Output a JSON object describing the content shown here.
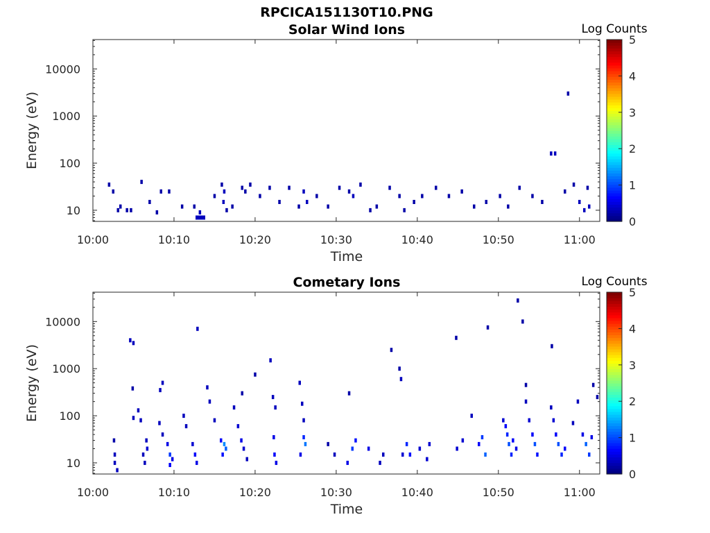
{
  "figure": {
    "title": "RPCICA151130T10.PNG"
  },
  "chart_data": [
    {
      "type": "heatmap",
      "title": "Solar Wind Ions",
      "xlabel": "Time",
      "ylabel": "Energy (eV)",
      "x_ticks": [
        "10:00",
        "10:10",
        "10:20",
        "10:30",
        "10:40",
        "10:50",
        "11:00"
      ],
      "x_range_minutes": [
        0,
        62.5
      ],
      "y_ticks": [
        "10",
        "100",
        "1000",
        "10000"
      ],
      "y_scale": "log",
      "y_range_eV": [
        5.8,
        42000
      ],
      "colorbar": {
        "label": "Log Counts",
        "ticks": [
          "0",
          "1",
          "2",
          "3",
          "4",
          "5"
        ],
        "range": [
          0,
          5
        ],
        "colormap": "jet"
      },
      "cells": [
        {
          "t": 2.0,
          "e": 35,
          "v": 0.2
        },
        {
          "t": 2.5,
          "e": 25,
          "v": 0.2
        },
        {
          "t": 3.1,
          "e": 10,
          "v": 0.2
        },
        {
          "t": 3.4,
          "e": 12,
          "v": 0.2
        },
        {
          "t": 4.2,
          "e": 10,
          "v": 0.2
        },
        {
          "t": 4.7,
          "e": 10,
          "v": 0.2
        },
        {
          "t": 6.0,
          "e": 40,
          "v": 0.2
        },
        {
          "t": 7.0,
          "e": 15,
          "v": 0.2
        },
        {
          "t": 7.9,
          "e": 9,
          "v": 0.2
        },
        {
          "t": 8.4,
          "e": 25,
          "v": 0.2
        },
        {
          "t": 9.4,
          "e": 25,
          "v": 0.2
        },
        {
          "t": 11.0,
          "e": 12,
          "v": 0.2
        },
        {
          "t": 12.5,
          "e": 12,
          "v": 0.2
        },
        {
          "t": 12.8,
          "e": 7,
          "v": 0.3
        },
        {
          "t": 13.1,
          "e": 7,
          "v": 0.3
        },
        {
          "t": 13.4,
          "e": 7,
          "v": 0.3
        },
        {
          "t": 13.7,
          "e": 7,
          "v": 0.3
        },
        {
          "t": 13.2,
          "e": 9,
          "v": 0.3
        },
        {
          "t": 15.0,
          "e": 20,
          "v": 0.2
        },
        {
          "t": 15.9,
          "e": 35,
          "v": 0.2
        },
        {
          "t": 16.2,
          "e": 25,
          "v": 0.3
        },
        {
          "t": 16.1,
          "e": 15,
          "v": 0.3
        },
        {
          "t": 16.5,
          "e": 10,
          "v": 0.2
        },
        {
          "t": 17.2,
          "e": 12,
          "v": 0.2
        },
        {
          "t": 18.4,
          "e": 30,
          "v": 0.2
        },
        {
          "t": 18.8,
          "e": 25,
          "v": 0.2
        },
        {
          "t": 19.4,
          "e": 35,
          "v": 0.2
        },
        {
          "t": 20.6,
          "e": 20,
          "v": 0.2
        },
        {
          "t": 21.8,
          "e": 30,
          "v": 0.2
        },
        {
          "t": 23.0,
          "e": 15,
          "v": 0.2
        },
        {
          "t": 24.2,
          "e": 30,
          "v": 0.2
        },
        {
          "t": 25.4,
          "e": 12,
          "v": 0.2
        },
        {
          "t": 26.0,
          "e": 25,
          "v": 0.3
        },
        {
          "t": 26.4,
          "e": 15,
          "v": 0.3
        },
        {
          "t": 27.6,
          "e": 20,
          "v": 0.2
        },
        {
          "t": 29.0,
          "e": 12,
          "v": 0.2
        },
        {
          "t": 30.4,
          "e": 30,
          "v": 0.2
        },
        {
          "t": 31.6,
          "e": 25,
          "v": 0.2
        },
        {
          "t": 32.1,
          "e": 20,
          "v": 0.3
        },
        {
          "t": 33.0,
          "e": 35,
          "v": 0.2
        },
        {
          "t": 34.2,
          "e": 10,
          "v": 0.2
        },
        {
          "t": 35.0,
          "e": 12,
          "v": 0.2
        },
        {
          "t": 36.6,
          "e": 30,
          "v": 0.2
        },
        {
          "t": 37.8,
          "e": 20,
          "v": 0.2
        },
        {
          "t": 38.4,
          "e": 10,
          "v": 0.2
        },
        {
          "t": 39.6,
          "e": 15,
          "v": 0.2
        },
        {
          "t": 40.6,
          "e": 20,
          "v": 0.2
        },
        {
          "t": 42.3,
          "e": 30,
          "v": 0.2
        },
        {
          "t": 43.9,
          "e": 20,
          "v": 0.2
        },
        {
          "t": 45.5,
          "e": 25,
          "v": 0.2
        },
        {
          "t": 47.0,
          "e": 12,
          "v": 0.2
        },
        {
          "t": 48.5,
          "e": 15,
          "v": 0.2
        },
        {
          "t": 50.2,
          "e": 20,
          "v": 0.2
        },
        {
          "t": 51.2,
          "e": 12,
          "v": 0.2
        },
        {
          "t": 52.6,
          "e": 30,
          "v": 0.2
        },
        {
          "t": 54.2,
          "e": 20,
          "v": 0.2
        },
        {
          "t": 55.4,
          "e": 15,
          "v": 0.2
        },
        {
          "t": 56.5,
          "e": 160,
          "v": 0.3
        },
        {
          "t": 57.0,
          "e": 160,
          "v": 0.3
        },
        {
          "t": 58.2,
          "e": 25,
          "v": 0.2
        },
        {
          "t": 59.3,
          "e": 35,
          "v": 0.2
        },
        {
          "t": 60.0,
          "e": 15,
          "v": 0.3
        },
        {
          "t": 60.6,
          "e": 10,
          "v": 0.3
        },
        {
          "t": 61.2,
          "e": 12,
          "v": 0.3
        },
        {
          "t": 61.0,
          "e": 30,
          "v": 0.2
        },
        {
          "t": 58.6,
          "e": 3000,
          "v": 0.2
        }
      ]
    },
    {
      "type": "heatmap",
      "title": "Cometary Ions",
      "xlabel": "Time",
      "ylabel": "Energy (eV)",
      "x_ticks": [
        "10:00",
        "10:10",
        "10:20",
        "10:30",
        "10:40",
        "10:50",
        "11:00"
      ],
      "x_range_minutes": [
        0,
        62.5
      ],
      "y_ticks": [
        "10",
        "100",
        "1000",
        "10000"
      ],
      "y_scale": "log",
      "y_range_eV": [
        5.8,
        42000
      ],
      "colorbar": {
        "label": "Log Counts",
        "ticks": [
          "0",
          "1",
          "2",
          "3",
          "4",
          "5"
        ],
        "range": [
          0,
          5
        ],
        "colormap": "jet"
      },
      "cells": [
        {
          "t": 2.6,
          "e": 30,
          "v": 0.2
        },
        {
          "t": 2.7,
          "e": 15,
          "v": 0.3
        },
        {
          "t": 2.7,
          "e": 10,
          "v": 0.3
        },
        {
          "t": 3.0,
          "e": 7,
          "v": 0.3
        },
        {
          "t": 4.6,
          "e": 4000,
          "v": 0.3
        },
        {
          "t": 5.0,
          "e": 3500,
          "v": 0.3
        },
        {
          "t": 4.9,
          "e": 380,
          "v": 0.2
        },
        {
          "t": 5.0,
          "e": 90,
          "v": 0.3
        },
        {
          "t": 5.6,
          "e": 130,
          "v": 0.3
        },
        {
          "t": 5.9,
          "e": 80,
          "v": 0.3
        },
        {
          "t": 6.2,
          "e": 15,
          "v": 0.3
        },
        {
          "t": 6.4,
          "e": 10,
          "v": 0.3
        },
        {
          "t": 6.6,
          "e": 30,
          "v": 0.3
        },
        {
          "t": 6.7,
          "e": 20,
          "v": 0.4
        },
        {
          "t": 8.3,
          "e": 350,
          "v": 0.3
        },
        {
          "t": 8.6,
          "e": 500,
          "v": 0.3
        },
        {
          "t": 8.2,
          "e": 70,
          "v": 0.3
        },
        {
          "t": 8.6,
          "e": 40,
          "v": 0.3
        },
        {
          "t": 9.2,
          "e": 25,
          "v": 0.5
        },
        {
          "t": 9.5,
          "e": 15,
          "v": 0.9
        },
        {
          "t": 9.5,
          "e": 9,
          "v": 0.6
        },
        {
          "t": 9.8,
          "e": 12,
          "v": 0.5
        },
        {
          "t": 11.2,
          "e": 100,
          "v": 0.3
        },
        {
          "t": 11.5,
          "e": 60,
          "v": 0.3
        },
        {
          "t": 12.3,
          "e": 25,
          "v": 0.4
        },
        {
          "t": 12.6,
          "e": 15,
          "v": 0.6
        },
        {
          "t": 12.8,
          "e": 10,
          "v": 0.5
        },
        {
          "t": 12.9,
          "e": 7000,
          "v": 0.3
        },
        {
          "t": 14.1,
          "e": 400,
          "v": 0.3
        },
        {
          "t": 14.4,
          "e": 200,
          "v": 0.3
        },
        {
          "t": 15.0,
          "e": 80,
          "v": 0.3
        },
        {
          "t": 15.8,
          "e": 30,
          "v": 0.6
        },
        {
          "t": 16.2,
          "e": 25,
          "v": 1.3
        },
        {
          "t": 16.4,
          "e": 20,
          "v": 1.1
        },
        {
          "t": 16.0,
          "e": 15,
          "v": 0.7
        },
        {
          "t": 17.4,
          "e": 150,
          "v": 0.3
        },
        {
          "t": 17.9,
          "e": 60,
          "v": 0.4
        },
        {
          "t": 18.3,
          "e": 30,
          "v": 0.5
        },
        {
          "t": 18.6,
          "e": 20,
          "v": 0.4
        },
        {
          "t": 19.0,
          "e": 12,
          "v": 0.3
        },
        {
          "t": 18.4,
          "e": 300,
          "v": 0.2
        },
        {
          "t": 20.0,
          "e": 750,
          "v": 0.2
        },
        {
          "t": 21.9,
          "e": 1500,
          "v": 0.3
        },
        {
          "t": 22.2,
          "e": 250,
          "v": 0.3
        },
        {
          "t": 22.5,
          "e": 150,
          "v": 0.3
        },
        {
          "t": 22.3,
          "e": 35,
          "v": 0.5
        },
        {
          "t": 22.4,
          "e": 15,
          "v": 0.6
        },
        {
          "t": 22.6,
          "e": 10,
          "v": 0.5
        },
        {
          "t": 25.5,
          "e": 500,
          "v": 0.3
        },
        {
          "t": 25.8,
          "e": 180,
          "v": 0.3
        },
        {
          "t": 26.0,
          "e": 80,
          "v": 0.3
        },
        {
          "t": 26.0,
          "e": 35,
          "v": 0.8
        },
        {
          "t": 26.2,
          "e": 25,
          "v": 1.2
        },
        {
          "t": 25.6,
          "e": 15,
          "v": 0.5
        },
        {
          "t": 29.0,
          "e": 25,
          "v": 0.2
        },
        {
          "t": 29.8,
          "e": 15,
          "v": 0.3
        },
        {
          "t": 31.4,
          "e": 10,
          "v": 0.5
        },
        {
          "t": 32.0,
          "e": 20,
          "v": 0.9
        },
        {
          "t": 32.4,
          "e": 30,
          "v": 0.7
        },
        {
          "t": 31.6,
          "e": 300,
          "v": 0.2
        },
        {
          "t": 34.0,
          "e": 20,
          "v": 0.5
        },
        {
          "t": 35.4,
          "e": 10,
          "v": 0.3
        },
        {
          "t": 35.8,
          "e": 15,
          "v": 0.3
        },
        {
          "t": 36.8,
          "e": 2500,
          "v": 0.2
        },
        {
          "t": 37.8,
          "e": 1000,
          "v": 0.2
        },
        {
          "t": 38.0,
          "e": 600,
          "v": 0.3
        },
        {
          "t": 38.2,
          "e": 15,
          "v": 0.4
        },
        {
          "t": 38.7,
          "e": 25,
          "v": 0.8
        },
        {
          "t": 39.1,
          "e": 15,
          "v": 0.7
        },
        {
          "t": 40.3,
          "e": 20,
          "v": 0.4
        },
        {
          "t": 41.2,
          "e": 12,
          "v": 0.4
        },
        {
          "t": 41.5,
          "e": 25,
          "v": 0.4
        },
        {
          "t": 44.8,
          "e": 4500,
          "v": 0.2
        },
        {
          "t": 44.9,
          "e": 20,
          "v": 0.4
        },
        {
          "t": 45.6,
          "e": 30,
          "v": 0.4
        },
        {
          "t": 46.7,
          "e": 100,
          "v": 0.3
        },
        {
          "t": 47.6,
          "e": 25,
          "v": 0.6
        },
        {
          "t": 48.0,
          "e": 35,
          "v": 0.9
        },
        {
          "t": 48.4,
          "e": 15,
          "v": 1.1
        },
        {
          "t": 48.7,
          "e": 7500,
          "v": 0.2
        },
        {
          "t": 50.6,
          "e": 80,
          "v": 0.4
        },
        {
          "t": 50.9,
          "e": 60,
          "v": 0.6
        },
        {
          "t": 51.1,
          "e": 40,
          "v": 0.8
        },
        {
          "t": 51.3,
          "e": 25,
          "v": 1.0
        },
        {
          "t": 51.6,
          "e": 15,
          "v": 0.8
        },
        {
          "t": 51.8,
          "e": 30,
          "v": 0.6
        },
        {
          "t": 52.2,
          "e": 20,
          "v": 0.5
        },
        {
          "t": 52.4,
          "e": 28000,
          "v": 0.2
        },
        {
          "t": 53.0,
          "e": 10000,
          "v": 0.2
        },
        {
          "t": 53.4,
          "e": 200,
          "v": 0.3
        },
        {
          "t": 53.8,
          "e": 80,
          "v": 0.4
        },
        {
          "t": 54.2,
          "e": 40,
          "v": 0.6
        },
        {
          "t": 54.5,
          "e": 25,
          "v": 1.0
        },
        {
          "t": 54.8,
          "e": 15,
          "v": 0.7
        },
        {
          "t": 53.4,
          "e": 450,
          "v": 0.2
        },
        {
          "t": 56.6,
          "e": 3000,
          "v": 0.2
        },
        {
          "t": 56.5,
          "e": 150,
          "v": 0.3
        },
        {
          "t": 56.8,
          "e": 80,
          "v": 0.4
        },
        {
          "t": 57.1,
          "e": 40,
          "v": 0.6
        },
        {
          "t": 57.4,
          "e": 25,
          "v": 1.0
        },
        {
          "t": 57.8,
          "e": 15,
          "v": 0.8
        },
        {
          "t": 58.2,
          "e": 20,
          "v": 0.6
        },
        {
          "t": 59.2,
          "e": 70,
          "v": 0.3
        },
        {
          "t": 59.8,
          "e": 200,
          "v": 0.3
        },
        {
          "t": 60.4,
          "e": 40,
          "v": 0.5
        },
        {
          "t": 60.8,
          "e": 25,
          "v": 1.1
        },
        {
          "t": 61.2,
          "e": 15,
          "v": 0.9
        },
        {
          "t": 61.5,
          "e": 35,
          "v": 0.5
        },
        {
          "t": 61.7,
          "e": 450,
          "v": 0.2
        },
        {
          "t": 62.2,
          "e": 250,
          "v": 0.2
        }
      ]
    }
  ]
}
